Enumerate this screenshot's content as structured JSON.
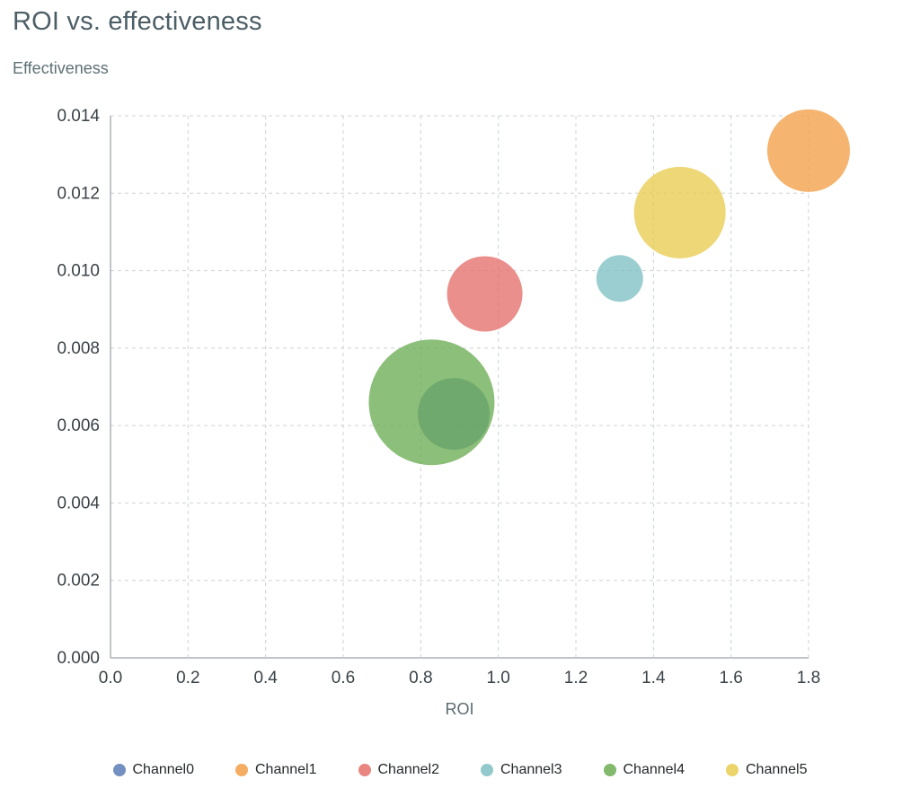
{
  "header": {
    "title": "ROI vs. effectiveness"
  },
  "chart_data": {
    "type": "scatter",
    "title": "ROI vs. effectiveness",
    "xlabel": "ROI",
    "ylabel": "Effectiveness",
    "xlim": [
      0,
      1.8
    ],
    "ylim": [
      0,
      0.014
    ],
    "x_ticks": [
      0.0,
      0.2,
      0.4,
      0.6,
      0.8,
      1.0,
      1.2,
      1.4,
      1.6,
      1.8
    ],
    "y_ticks": [
      0.0,
      0.002,
      0.004,
      0.006,
      0.008,
      0.01,
      0.012,
      0.014
    ],
    "grid": true,
    "grid_style": "dashed",
    "legend_position": "bottom",
    "bubble_opacity": 0.78,
    "axis_line_color": "#9aa0a6",
    "grid_line_color": "#cdd1d4",
    "series": [
      {
        "name": "Channel0",
        "color": "#5B7CB5",
        "x": 0.885,
        "y": 0.0063,
        "r": 40
      },
      {
        "name": "Channel1",
        "color": "#F29F47",
        "x": 1.8,
        "y": 0.0131,
        "r": 46
      },
      {
        "name": "Channel2",
        "color": "#E4706B",
        "x": 0.965,
        "y": 0.0094,
        "r": 42
      },
      {
        "name": "Channel3",
        "color": "#7FC0C3",
        "x": 1.313,
        "y": 0.0098,
        "r": 26
      },
      {
        "name": "Channel4",
        "color": "#6CAD54",
        "x": 0.828,
        "y": 0.0066,
        "r": 70
      },
      {
        "name": "Channel5",
        "color": "#E8CC4F",
        "x": 1.468,
        "y": 0.0115,
        "r": 51
      }
    ]
  }
}
